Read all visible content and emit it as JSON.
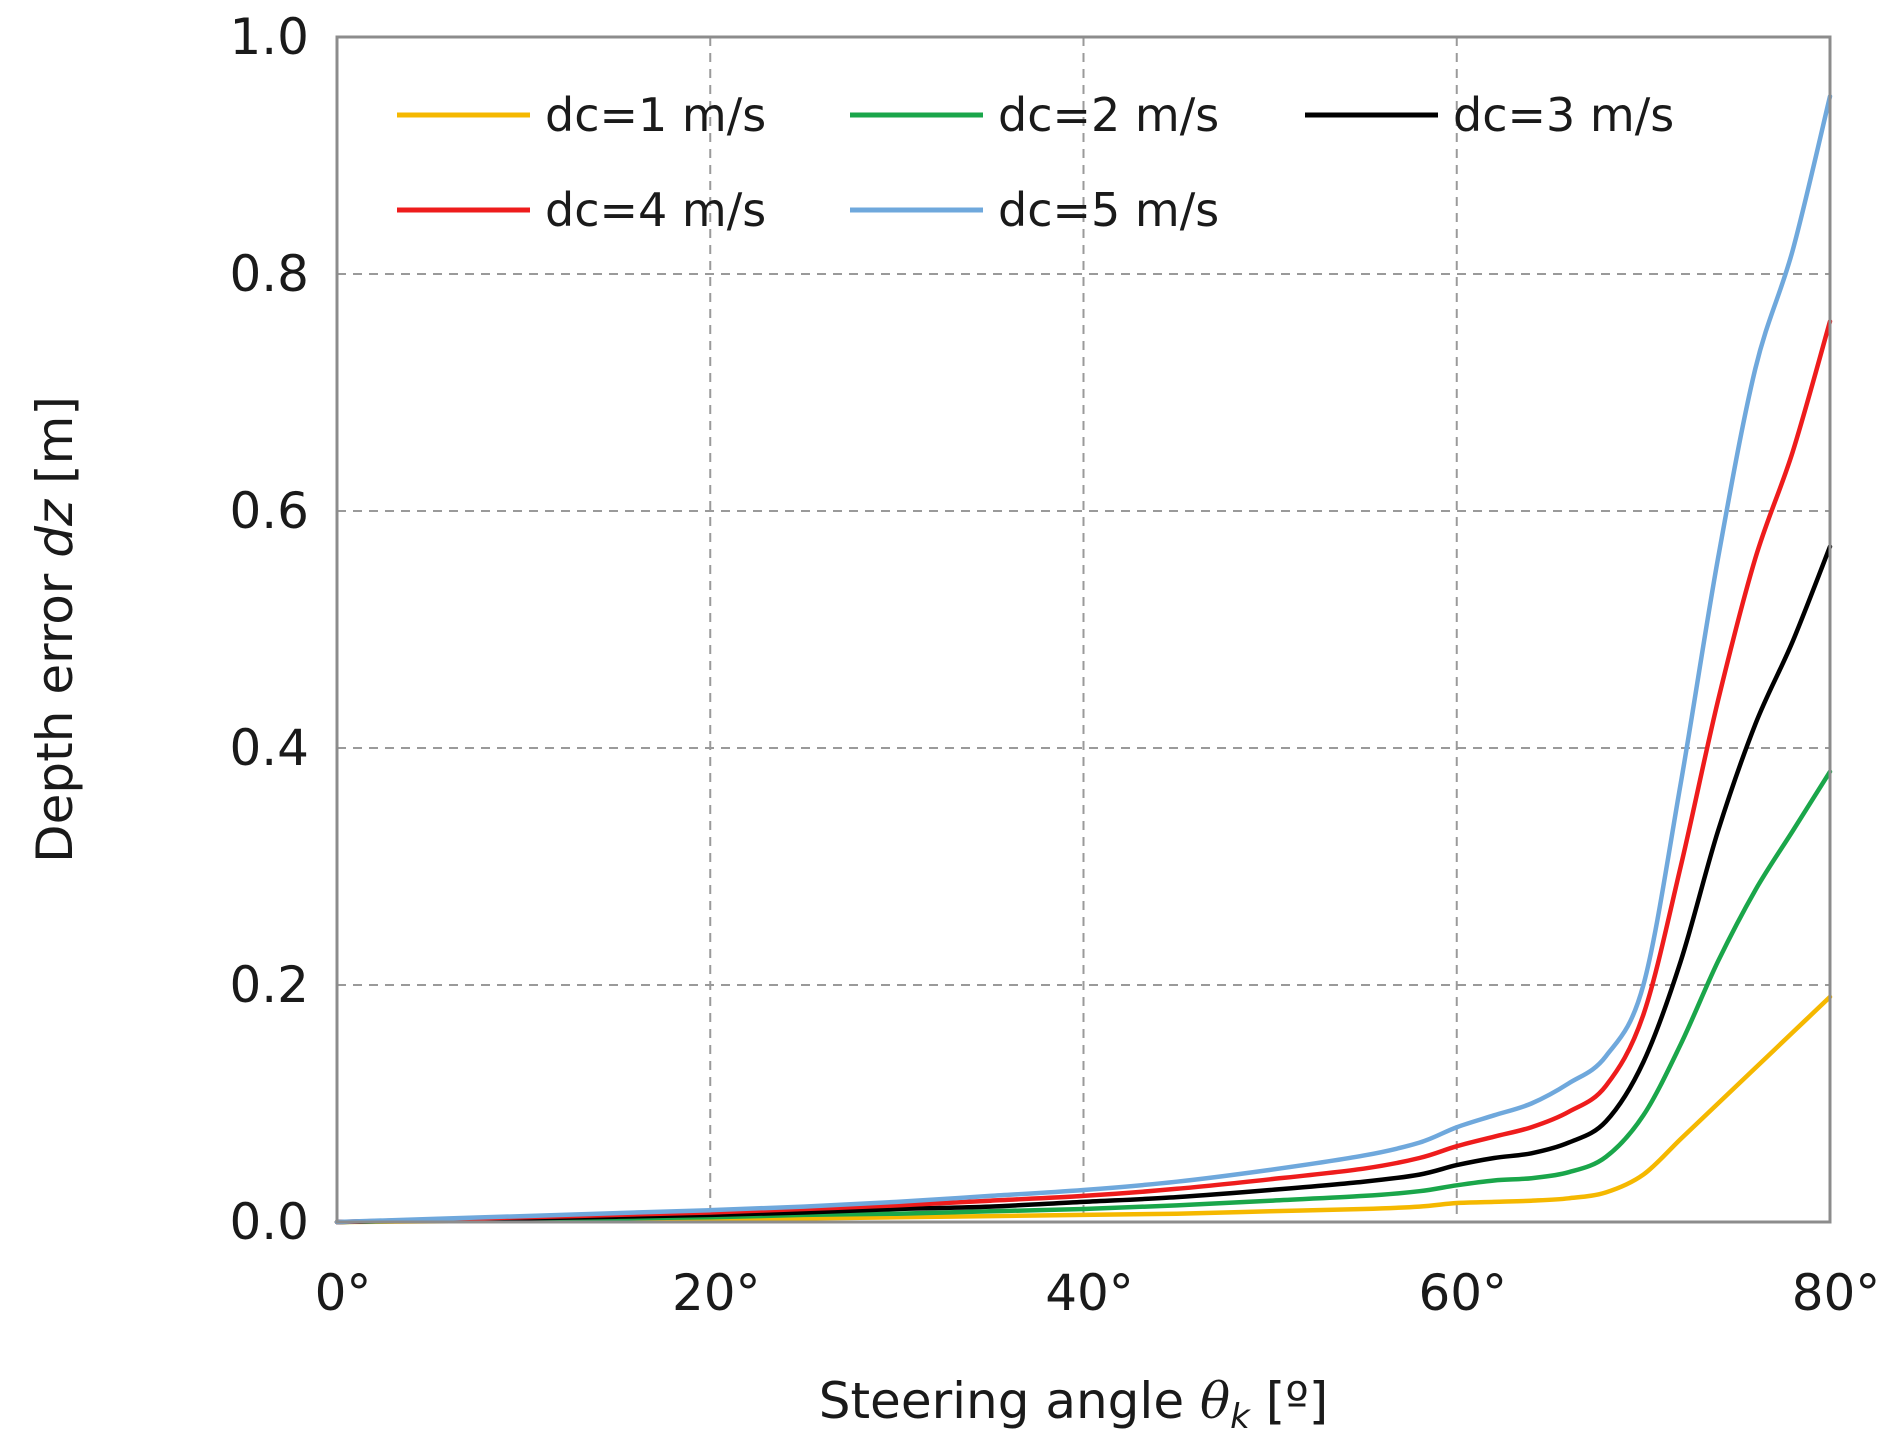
{
  "chart_data": {
    "type": "line",
    "title": "",
    "xlabel": "Steering angle",
    "xlabel_symbol": "θ",
    "xlabel_subscript": "k",
    "xlabel_unit": " [º]",
    "ylabel": "Depth error",
    "ylabel_symbol": "dz",
    "ylabel_unit": " [m]",
    "xlim": [
      0,
      80
    ],
    "ylim": [
      0,
      1.0
    ],
    "x_ticks": [
      0,
      20,
      40,
      60,
      80
    ],
    "x_tick_labels": [
      "0°",
      "20°",
      "40°",
      "60°",
      "80°"
    ],
    "y_ticks": [
      0,
      0.2,
      0.4,
      0.6,
      0.8,
      1.0
    ],
    "y_tick_labels": [
      "0.0",
      "0.2",
      "0.4",
      "0.6",
      "0.8",
      "1.0"
    ],
    "grid": true,
    "legend_position": "top",
    "x": [
      0,
      5,
      10,
      15,
      20,
      25,
      30,
      35,
      40,
      45,
      50,
      55,
      58,
      60,
      62,
      64,
      66,
      68,
      70,
      72,
      74,
      76,
      78,
      80
    ],
    "series": [
      {
        "name": "dc=1 m/s",
        "color": "#f5b800",
        "values": [
          0,
          0.0005,
          0.001,
          0.0015,
          0.002,
          0.003,
          0.004,
          0.005,
          0.006,
          0.007,
          0.009,
          0.011,
          0.013,
          0.016,
          0.017,
          0.018,
          0.02,
          0.025,
          0.04,
          0.07,
          0.1,
          0.13,
          0.16,
          0.19
        ]
      },
      {
        "name": "dc=2 m/s",
        "color": "#1aa64a",
        "values": [
          0,
          0.001,
          0.002,
          0.003,
          0.004,
          0.006,
          0.007,
          0.009,
          0.011,
          0.014,
          0.018,
          0.022,
          0.026,
          0.031,
          0.035,
          0.037,
          0.042,
          0.055,
          0.09,
          0.15,
          0.22,
          0.28,
          0.33,
          0.38
        ]
      },
      {
        "name": "dc=3 m/s",
        "color": "#000000",
        "values": [
          0,
          0.0015,
          0.003,
          0.0045,
          0.006,
          0.008,
          0.011,
          0.013,
          0.017,
          0.021,
          0.027,
          0.034,
          0.04,
          0.048,
          0.054,
          0.058,
          0.067,
          0.085,
          0.135,
          0.22,
          0.33,
          0.42,
          0.49,
          0.57
        ]
      },
      {
        "name": "dc=4 m/s",
        "color": "#ee1c1c",
        "values": [
          0,
          0.002,
          0.004,
          0.006,
          0.008,
          0.011,
          0.014,
          0.018,
          0.022,
          0.028,
          0.036,
          0.045,
          0.054,
          0.064,
          0.072,
          0.08,
          0.093,
          0.115,
          0.175,
          0.3,
          0.44,
          0.56,
          0.65,
          0.76
        ]
      },
      {
        "name": "dc=5 m/s",
        "color": "#6fa8dc",
        "values": [
          0,
          0.0025,
          0.005,
          0.0075,
          0.01,
          0.013,
          0.017,
          0.022,
          0.027,
          0.034,
          0.044,
          0.056,
          0.067,
          0.08,
          0.09,
          0.1,
          0.117,
          0.14,
          0.2,
          0.37,
          0.56,
          0.72,
          0.82,
          0.95
        ]
      }
    ]
  }
}
